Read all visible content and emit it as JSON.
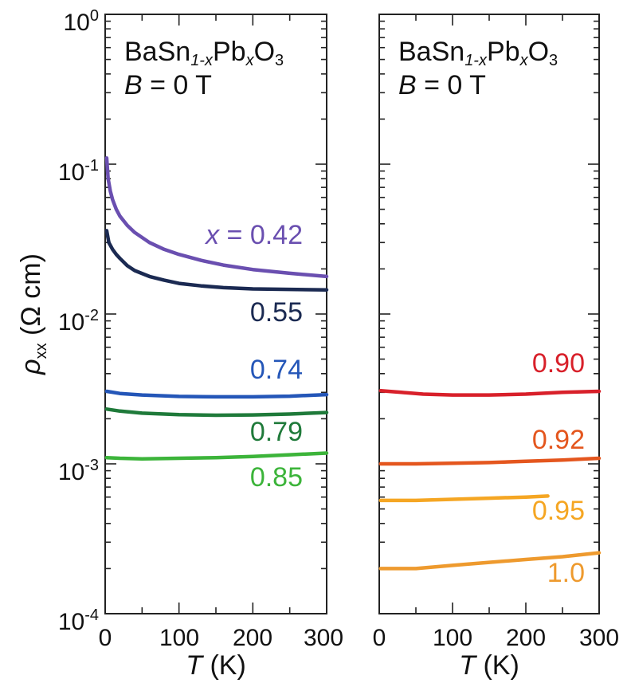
{
  "chart_data": [
    {
      "type": "line",
      "panel": "left",
      "annotation": {
        "line1_base": "BaSn",
        "line1_sub1": "1-x",
        "line1_mid": "Pb",
        "line1_sub2": "x",
        "line1_end": "O",
        "line1_sub3": "3",
        "line2_var": "B",
        "line2_rest": " = 0 T"
      },
      "xlabel": {
        "var": "T",
        "unit": " (K)"
      },
      "ylabel": {
        "var": "ρ",
        "sub": "xx",
        "unit": " (Ω cm)"
      },
      "xlim": [
        0,
        300
      ],
      "ylim": [
        0.0001,
        1
      ],
      "yscale": "log",
      "xticks": [
        0,
        100,
        200,
        300
      ],
      "ytick_labels": [
        {
          "base": "10",
          "exp": "0",
          "value": 1
        },
        {
          "base": "10",
          "exp": "-1",
          "value": 0.1
        },
        {
          "base": "10",
          "exp": "-2",
          "value": 0.01
        },
        {
          "base": "10",
          "exp": "-3",
          "value": 0.001
        },
        {
          "base": "10",
          "exp": "-4",
          "value": 0.0001
        }
      ],
      "series": [
        {
          "name": "x = 0.42",
          "label_var": "x",
          "label_rest": " = 0.42",
          "color": "#6a4fb0",
          "x": [
            2,
            4,
            7,
            10,
            15,
            20,
            30,
            40,
            60,
            80,
            100,
            130,
            160,
            200,
            250,
            300
          ],
          "y": [
            0.11,
            0.08,
            0.066,
            0.058,
            0.05,
            0.045,
            0.039,
            0.035,
            0.03,
            0.027,
            0.025,
            0.0228,
            0.0212,
            0.0198,
            0.0187,
            0.0178
          ]
        },
        {
          "name": "0.55",
          "color": "#1b2a52",
          "x": [
            2,
            5,
            10,
            15,
            20,
            30,
            40,
            60,
            80,
            100,
            130,
            160,
            200,
            250,
            300
          ],
          "y": [
            0.036,
            0.03,
            0.027,
            0.025,
            0.0235,
            0.021,
            0.0195,
            0.0178,
            0.0168,
            0.016,
            0.0154,
            0.015,
            0.0147,
            0.0146,
            0.0145
          ]
        },
        {
          "name": "0.74",
          "color": "#2456b8",
          "x": [
            2,
            20,
            50,
            100,
            150,
            200,
            250,
            300
          ],
          "y": [
            0.00305,
            0.00295,
            0.00288,
            0.00282,
            0.0028,
            0.0028,
            0.00283,
            0.0029
          ]
        },
        {
          "name": "0.79",
          "color": "#1f7a3a",
          "x": [
            2,
            20,
            50,
            100,
            150,
            200,
            250,
            300
          ],
          "y": [
            0.00232,
            0.00225,
            0.00218,
            0.00213,
            0.00211,
            0.00212,
            0.00215,
            0.0022
          ]
        },
        {
          "name": "0.85",
          "color": "#3cb43a",
          "x": [
            2,
            20,
            50,
            100,
            150,
            200,
            250,
            300
          ],
          "y": [
            0.0011,
            0.00109,
            0.00108,
            0.00109,
            0.0011,
            0.00112,
            0.00115,
            0.00118
          ]
        }
      ]
    },
    {
      "type": "line",
      "panel": "right",
      "annotation": {
        "line1_base": "BaSn",
        "line1_sub1": "1-x",
        "line1_mid": "Pb",
        "line1_sub2": "x",
        "line1_end": "O",
        "line1_sub3": "3",
        "line2_var": "B",
        "line2_rest": " = 0 T"
      },
      "xlabel": {
        "var": "T",
        "unit": " (K)"
      },
      "xlim": [
        0,
        300
      ],
      "ylim": [
        0.0001,
        1
      ],
      "yscale": "log",
      "xticks": [
        0,
        100,
        200,
        300
      ],
      "series": [
        {
          "name": "0.90",
          "color": "#d8202a",
          "x": [
            2,
            30,
            60,
            100,
            150,
            200,
            250,
            300
          ],
          "y": [
            0.00308,
            0.003,
            0.00292,
            0.00288,
            0.00288,
            0.00292,
            0.003,
            0.00305
          ]
        },
        {
          "name": "0.92",
          "color": "#e4561e",
          "x": [
            2,
            50,
            100,
            150,
            200,
            250,
            300
          ],
          "y": [
            0.001,
            0.001,
            0.00101,
            0.00102,
            0.00104,
            0.00106,
            0.00109
          ]
        },
        {
          "name": "0.95",
          "color": "#f5a623",
          "x": [
            2,
            50,
            100,
            150,
            200,
            230
          ],
          "y": [
            0.00057,
            0.00057,
            0.00058,
            0.00059,
            0.0006,
            0.00061
          ]
        },
        {
          "name": "1.0",
          "color": "#ee9a2e",
          "x": [
            2,
            50,
            100,
            150,
            200,
            250,
            300
          ],
          "y": [
            0.0002,
            0.0002,
            0.00021,
            0.00022,
            0.00023,
            0.00024,
            0.000255
          ]
        }
      ]
    }
  ]
}
